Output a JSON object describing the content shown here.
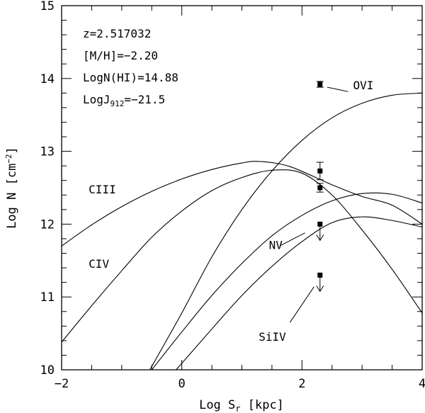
{
  "chart_data": {
    "type": "line",
    "xlabel_main": "Log S",
    "xlabel_sub": "r",
    "xlabel_unit": " [kpc]",
    "ylabel_main": "Log N [cm",
    "ylabel_sup": "−2",
    "ylabel_close": "]",
    "xlim": [
      -2,
      4
    ],
    "ylim": [
      10,
      15
    ],
    "xticks": [
      -2,
      0,
      2,
      4
    ],
    "xtick_labels": [
      "−2",
      "0",
      "2",
      "4"
    ],
    "yticks": [
      10,
      11,
      12,
      13,
      14,
      15
    ],
    "ytick_labels": [
      "10",
      "11",
      "12",
      "13",
      "14",
      "15"
    ],
    "grid": false,
    "annotations": [
      {
        "text": "z=2.517032"
      },
      {
        "text": "[M/H]=−2.20"
      },
      {
        "text": "LogN(HI)=14.88"
      },
      {
        "main": "LogJ",
        "sub": "912",
        "rest": "=−21.5"
      }
    ],
    "series": [
      {
        "name": "CIII",
        "points": [
          [
            -2.0,
            11.7
          ],
          [
            -1.5,
            11.99
          ],
          [
            -1.0,
            12.24
          ],
          [
            -0.5,
            12.45
          ],
          [
            0.0,
            12.62
          ],
          [
            0.5,
            12.75
          ],
          [
            1.0,
            12.84
          ],
          [
            1.3,
            12.86
          ],
          [
            1.8,
            12.79
          ],
          [
            2.5,
            12.54
          ],
          [
            3.0,
            12.38
          ],
          [
            3.5,
            12.26
          ],
          [
            4.0,
            12.0
          ]
        ]
      },
      {
        "name": "CIV",
        "points": [
          [
            -2.0,
            10.38
          ],
          [
            -1.5,
            10.88
          ],
          [
            -1.0,
            11.36
          ],
          [
            -0.5,
            11.82
          ],
          [
            0.0,
            12.18
          ],
          [
            0.5,
            12.46
          ],
          [
            1.0,
            12.64
          ],
          [
            1.5,
            12.74
          ],
          [
            2.0,
            12.7
          ],
          [
            2.5,
            12.4
          ],
          [
            3.0,
            11.92
          ],
          [
            3.5,
            11.38
          ],
          [
            4.0,
            10.78
          ]
        ]
      },
      {
        "name": "NV",
        "points": [
          [
            -0.5,
            10.0
          ],
          [
            0.0,
            10.52
          ],
          [
            0.5,
            11.02
          ],
          [
            1.0,
            11.46
          ],
          [
            1.5,
            11.84
          ],
          [
            2.0,
            12.12
          ],
          [
            2.5,
            12.32
          ],
          [
            3.0,
            12.42
          ],
          [
            3.5,
            12.41
          ],
          [
            4.0,
            12.29
          ]
        ]
      },
      {
        "name": "OVI",
        "points": [
          [
            -0.6,
            9.9
          ],
          [
            0.0,
            10.78
          ],
          [
            0.5,
            11.55
          ],
          [
            1.0,
            12.2
          ],
          [
            1.5,
            12.73
          ],
          [
            2.0,
            13.15
          ],
          [
            2.5,
            13.46
          ],
          [
            3.0,
            13.66
          ],
          [
            3.5,
            13.77
          ],
          [
            4.0,
            13.8
          ]
        ]
      },
      {
        "name": "SiIV",
        "points": [
          [
            -0.2,
            9.9
          ],
          [
            0.5,
            10.56
          ],
          [
            1.0,
            11.02
          ],
          [
            1.5,
            11.42
          ],
          [
            2.0,
            11.76
          ],
          [
            2.5,
            12.02
          ],
          [
            3.0,
            12.1
          ],
          [
            3.5,
            12.05
          ],
          [
            4.0,
            11.96
          ]
        ]
      }
    ],
    "observations": [
      {
        "name": "OVI",
        "x": 2.3,
        "y": 13.92,
        "err": 0.04,
        "upper_limit": false
      },
      {
        "name": "CIII",
        "x": 2.3,
        "y": 12.73,
        "err": 0.12,
        "upper_limit": false
      },
      {
        "name": "CIV",
        "x": 2.3,
        "y": 12.5,
        "err": 0.06,
        "upper_limit": false
      },
      {
        "name": "NV",
        "x": 2.3,
        "y": 12.0,
        "err": 0,
        "upper_limit": true
      },
      {
        "name": "SiIV",
        "x": 2.3,
        "y": 11.3,
        "err": 0,
        "upper_limit": true
      }
    ],
    "curve_labels": [
      {
        "text": "CIII",
        "x": -1.55,
        "y": 12.42
      },
      {
        "text": "CIV",
        "x": -1.55,
        "y": 11.4
      },
      {
        "text": "NV",
        "x": 1.45,
        "y": 11.66
      },
      {
        "text": "SiIV",
        "x": 1.28,
        "y": 10.4
      },
      {
        "text": "OVI",
        "x": 2.85,
        "y": 13.85
      }
    ],
    "leaders": [
      {
        "from": [
          2.42,
          13.88
        ],
        "to": [
          2.77,
          13.82
        ]
      },
      {
        "from": [
          1.63,
          11.7
        ],
        "to": [
          2.05,
          11.88
        ]
      },
      {
        "from": [
          1.8,
          10.65
        ],
        "to": [
          2.2,
          11.14
        ]
      }
    ]
  }
}
